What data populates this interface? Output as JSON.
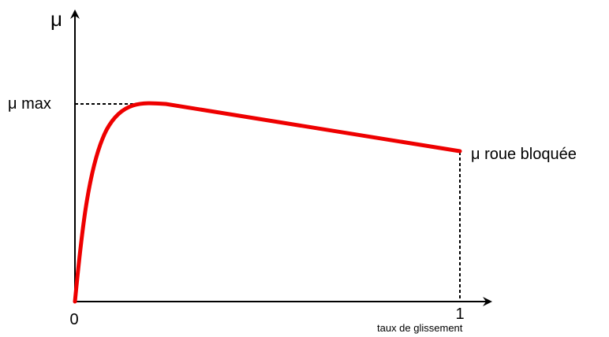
{
  "axes": {
    "y_label": "μ",
    "x_label": "taux de glissement",
    "x_origin": "0",
    "x_end": "1"
  },
  "annotations": {
    "max": "μ max",
    "locked": "μ roue bloquée"
  }
}
